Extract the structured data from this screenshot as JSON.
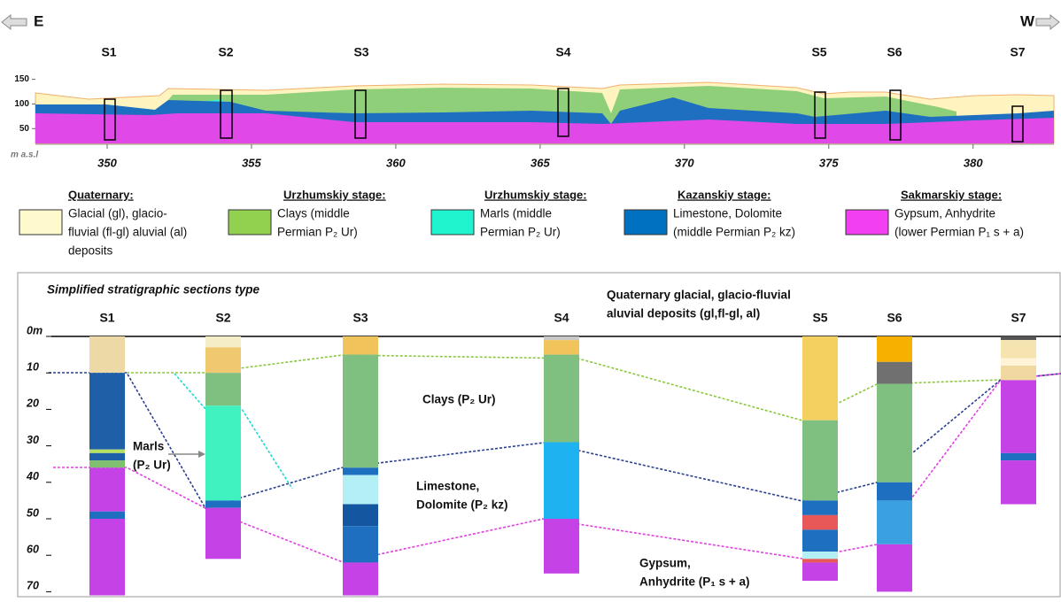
{
  "header": {
    "left": "E",
    "right": "W"
  },
  "profile": {
    "sections": [
      "S1",
      "S2",
      "S3",
      "S4",
      "S5",
      "S6",
      "S7"
    ],
    "elevation_axis": {
      "label": "m a.s.l",
      "lim": [
        20,
        160
      ],
      "ticks": [
        50,
        100,
        150
      ]
    },
    "distance_axis": {
      "lim": [
        347.5,
        382.8
      ],
      "ticks": [
        350,
        355,
        360,
        365,
        370,
        375,
        380
      ]
    }
  },
  "legend": [
    {
      "title": "Quaternary:",
      "lines": [
        "Glacial (gl), glacio-",
        "fluvial (fl-gl) aluvial (al)",
        "deposits"
      ],
      "color": "#fffacd"
    },
    {
      "title": "Urzhumskiy stage:",
      "lines": [
        "Clays (middle",
        "Permian P₂ Ur)"
      ],
      "color": "#92d050"
    },
    {
      "title": "Urzhumskiy stage:",
      "lines": [
        "Marls (middle",
        "Permian P₂ Ur)"
      ],
      "color": "#1ef5cf"
    },
    {
      "title": "Kazanskiy stage:",
      "lines": [
        "Limestone, Dolomite",
        "(middle Permian P₂ kz)"
      ],
      "color": "#0070c0"
    },
    {
      "title": "Sakmarskiy stage:",
      "lines": [
        "Gypsum, Anhydrite",
        "(lower Permian P₁ s + a)"
      ],
      "color": "#f23ff2"
    }
  ],
  "sections": {
    "title": "Simplified stratigraphic sections type",
    "depth_axis": {
      "lim": [
        0,
        70
      ],
      "ticks": [
        {
          "value": 0,
          "label": "0m"
        },
        10,
        20,
        30,
        40,
        50,
        60,
        70
      ]
    },
    "columns": [
      {
        "label": "S1",
        "layers": [
          {
            "top": 0,
            "bottom": 10,
            "color": "#ecd9a6"
          },
          {
            "top": 10,
            "bottom": 31,
            "color": "#1f5fa8"
          },
          {
            "top": 31,
            "bottom": 32,
            "color": "#b5e060"
          },
          {
            "top": 32,
            "bottom": 34,
            "color": "#1f5fa8"
          },
          {
            "top": 34,
            "bottom": 36,
            "color": "#7fbf6f"
          },
          {
            "top": 36,
            "bottom": 48,
            "color": "#c542e6"
          },
          {
            "top": 48,
            "bottom": 50,
            "color": "#1f6fc0"
          },
          {
            "top": 50,
            "bottom": 71,
            "color": "#c542e6"
          }
        ]
      },
      {
        "label": "S2",
        "layers": [
          {
            "top": 0,
            "bottom": 3,
            "color": "#f5edc5"
          },
          {
            "top": 3,
            "bottom": 10,
            "color": "#f0c870"
          },
          {
            "top": 10,
            "bottom": 19,
            "color": "#7fbf7f"
          },
          {
            "top": 19,
            "bottom": 45,
            "color": "#3ff2bf"
          },
          {
            "top": 45,
            "bottom": 47,
            "color": "#1f6fc0"
          },
          {
            "top": 47,
            "bottom": 61,
            "color": "#c542e6"
          }
        ]
      },
      {
        "label": "S3",
        "layers": [
          {
            "top": 0,
            "bottom": 5,
            "color": "#f0c45a"
          },
          {
            "top": 5,
            "bottom": 36,
            "color": "#7fbf7f"
          },
          {
            "top": 36,
            "bottom": 38,
            "color": "#1f6fc0"
          },
          {
            "top": 38,
            "bottom": 46,
            "color": "#b3eff5"
          },
          {
            "top": 46,
            "bottom": 52,
            "color": "#1556a0"
          },
          {
            "top": 52,
            "bottom": 62,
            "color": "#1f6fc0"
          },
          {
            "top": 62,
            "bottom": 71,
            "color": "#c542e6"
          }
        ]
      },
      {
        "label": "S4",
        "layers": [
          {
            "top": 0,
            "bottom": 1,
            "color": "#c8c8c8"
          },
          {
            "top": 1,
            "bottom": 5,
            "color": "#f0c45a"
          },
          {
            "top": 5,
            "bottom": 29,
            "color": "#7fbf7f"
          },
          {
            "top": 29,
            "bottom": 50,
            "color": "#1fb2f0"
          },
          {
            "top": 50,
            "bottom": 65,
            "color": "#c542e6"
          }
        ]
      },
      {
        "label": "S5",
        "layers": [
          {
            "top": 0,
            "bottom": 23,
            "color": "#f3d060"
          },
          {
            "top": 23,
            "bottom": 45,
            "color": "#7fbf7f"
          },
          {
            "top": 45,
            "bottom": 49,
            "color": "#1f6fc0"
          },
          {
            "top": 49,
            "bottom": 53,
            "color": "#e85858"
          },
          {
            "top": 53,
            "bottom": 59,
            "color": "#1f6fc0"
          },
          {
            "top": 59,
            "bottom": 61,
            "color": "#b3eff5"
          },
          {
            "top": 61,
            "bottom": 62,
            "color": "#e85858"
          },
          {
            "top": 62,
            "bottom": 67,
            "color": "#c542e6"
          }
        ]
      },
      {
        "label": "S6",
        "layers": [
          {
            "top": 0,
            "bottom": 7,
            "color": "#f5b000"
          },
          {
            "top": 7,
            "bottom": 13,
            "color": "#707070"
          },
          {
            "top": 13,
            "bottom": 40,
            "color": "#7fbf7f"
          },
          {
            "top": 40,
            "bottom": 45,
            "color": "#1f6fc0"
          },
          {
            "top": 45,
            "bottom": 57,
            "color": "#3aa0e0"
          },
          {
            "top": 57,
            "bottom": 70,
            "color": "#c542e6"
          }
        ]
      },
      {
        "label": "S7",
        "layers": [
          {
            "top": 0,
            "bottom": 1,
            "color": "#555555"
          },
          {
            "top": 1,
            "bottom": 6,
            "color": "#f5e3b0"
          },
          {
            "top": 6,
            "bottom": 8,
            "color": "#fff3d8"
          },
          {
            "top": 8,
            "bottom": 12,
            "color": "#f0d8a0"
          },
          {
            "top": 12,
            "bottom": 32,
            "color": "#c542e6"
          },
          {
            "top": 32,
            "bottom": 34,
            "color": "#1f6fc0"
          },
          {
            "top": 34,
            "bottom": 46,
            "color": "#c542e6"
          }
        ]
      }
    ],
    "annotations": {
      "quaternary": [
        "Quaternary glacial, glacio-fluvial",
        "aluvial deposits (gl,fl-gl, al)"
      ],
      "clays": [
        "Clays (P₂ Ur)"
      ],
      "marls": [
        "Marls",
        "(P₂ Ur)"
      ],
      "limestone": [
        "Limestone,",
        "Dolomite (P₂ kz)"
      ],
      "gypsum": [
        "Gypsum,",
        "Anhydrite (P₁ s + a)"
      ]
    }
  }
}
